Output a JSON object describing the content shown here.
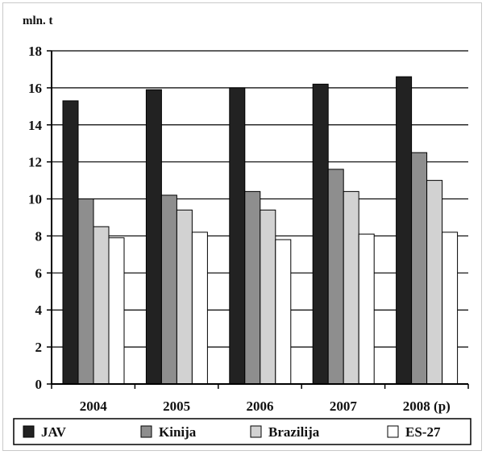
{
  "chart_data": {
    "type": "bar",
    "unit_label": "mln. t",
    "categories": [
      "2004",
      "2005",
      "2006",
      "2007",
      "2008 (p)"
    ],
    "series": [
      {
        "name": "JAV",
        "values": [
          15.3,
          15.9,
          16.0,
          16.2,
          16.6
        ],
        "color": "#222222"
      },
      {
        "name": "Kinija",
        "values": [
          10.0,
          10.2,
          10.4,
          11.6,
          12.5
        ],
        "color": "#8e8e8e"
      },
      {
        "name": "Brazilija",
        "values": [
          8.5,
          9.4,
          9.4,
          10.4,
          11.0
        ],
        "color": "#d2d2d2"
      },
      {
        "name": "ES-27",
        "values": [
          7.9,
          8.2,
          7.8,
          8.1,
          8.2
        ],
        "color": "#ffffff"
      }
    ],
    "ylim": [
      0,
      18
    ],
    "yticks": [
      "0",
      "2",
      "4",
      "6",
      "8",
      "10",
      "12",
      "14",
      "16",
      "18"
    ],
    "grid": true,
    "legend": "bottom"
  }
}
